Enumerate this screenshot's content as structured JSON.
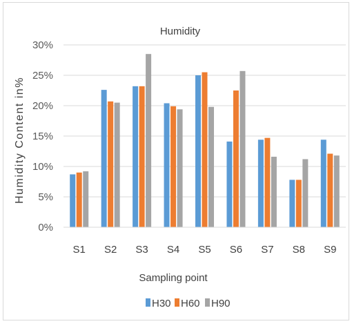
{
  "chart_data": {
    "type": "bar",
    "title": "Humidity",
    "xlabel": "Sampling point",
    "ylabel": "Humidity Content in%",
    "categories": [
      "S1",
      "S2",
      "S3",
      "S4",
      "S5",
      "S6",
      "S7",
      "S8",
      "S9"
    ],
    "series": [
      {
        "name": "H30",
        "color": "#5B9BD5",
        "values": [
          8.7,
          22.6,
          23.2,
          20.4,
          25.0,
          14.1,
          14.4,
          7.8,
          14.4
        ]
      },
      {
        "name": "H60",
        "color": "#ED7D31",
        "values": [
          9.0,
          20.7,
          23.2,
          19.9,
          25.5,
          22.5,
          14.7,
          7.8,
          12.1
        ]
      },
      {
        "name": "H90",
        "color": "#A5A5A5",
        "values": [
          9.2,
          20.5,
          28.5,
          19.4,
          19.8,
          25.7,
          11.6,
          11.2,
          11.8
        ]
      }
    ],
    "yticks": [
      "0%",
      "5%",
      "10%",
      "15%",
      "20%",
      "25%",
      "30%"
    ],
    "ylim": [
      0,
      30
    ],
    "grid": true,
    "legend": "bottom"
  }
}
